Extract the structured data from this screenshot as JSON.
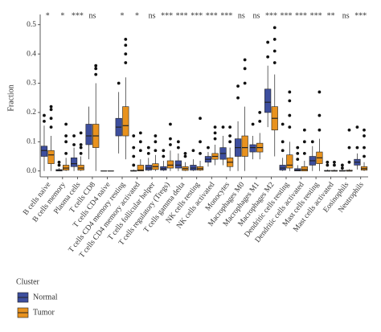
{
  "chart_data": {
    "type": "box",
    "y_label": "Fraction",
    "legend_title": "Cluster",
    "categories": [
      "B cells naive",
      "B cells memory",
      "Plasma cells",
      "T cells CD8",
      "T cells CD4 naive",
      "T cells CD4 memory resting",
      "T cells CD4 memory activated",
      "T cells follicular helper",
      "T cells regulatory (Tregs)",
      "T cells gamma delta",
      "NK cells resting",
      "NK cells activated",
      "Monocytes",
      "Macrophages M0",
      "Macrophages M1",
      "Macrophages M2",
      "Dendritic cells resting",
      "Dendritic cells activated",
      "Mast cells resting",
      "Mast cells activated",
      "Eosinophils",
      "Neutrophils"
    ],
    "annotations": [
      "*",
      "*",
      "***",
      "ns",
      null,
      "*",
      "*",
      "ns",
      "***",
      "***",
      "***",
      "***",
      "***",
      "ns",
      "ns",
      "***",
      "***",
      "***",
      "***",
      "**",
      "ns",
      "***"
    ],
    "ylim": [
      -0.02,
      0.535
    ],
    "yticks": [
      {
        "value": 0,
        "label": "0.0"
      },
      0.1,
      0.2,
      0.3,
      0.4,
      0.5
    ],
    "series": [
      {
        "name": "Normal",
        "color": "#3d4e9e",
        "whisker_low": [
          0,
          0,
          0,
          0.04,
          0,
          0.06,
          0,
          0,
          0,
          0,
          0,
          0.015,
          0.02,
          0,
          0.04,
          0.15,
          0,
          0,
          0,
          0,
          0,
          0.005
        ],
        "q1": [
          0.05,
          0,
          0.015,
          0.09,
          0,
          0.12,
          0,
          0.003,
          0.003,
          0.01,
          0.003,
          0.03,
          0.04,
          0.05,
          0.065,
          0.2,
          0.003,
          0,
          0.02,
          0,
          0,
          0.02
        ],
        "median": [
          0.07,
          0.002,
          0.025,
          0.12,
          0,
          0.15,
          0,
          0.01,
          0.008,
          0.02,
          0.01,
          0.04,
          0.06,
          0.08,
          0.08,
          0.235,
          0.01,
          0.003,
          0.035,
          0,
          0,
          0.03
        ],
        "q3": [
          0.085,
          0.005,
          0.045,
          0.16,
          0,
          0.18,
          0.002,
          0.02,
          0.015,
          0.035,
          0.02,
          0.05,
          0.08,
          0.11,
          0.09,
          0.28,
          0.02,
          0.008,
          0.05,
          0.002,
          0.002,
          0.04
        ],
        "whisker_high": [
          0.155,
          0.01,
          0.08,
          0.22,
          0,
          0.27,
          0.005,
          0.045,
          0.035,
          0.06,
          0.04,
          0.065,
          0.12,
          0.17,
          0.12,
          0.36,
          0.045,
          0.02,
          0.085,
          0.005,
          0.005,
          0.06
        ],
        "outliers": [
          [
            0.17,
            0.19
          ],
          [
            0.02,
            0.03
          ],
          [
            0.09,
            0.12
          ],
          [],
          [],
          [
            0.3
          ],
          [
            0.02,
            0.05,
            0.08,
            0.12
          ],
          [
            0.06,
            0.08
          ],
          [
            0.05,
            0.07
          ],
          [
            0.08,
            0.1
          ],
          [
            0.07
          ],
          [
            0.08
          ],
          [
            0.15
          ],
          [
            0.25,
            0.29
          ],
          [
            0.16
          ],
          [
            0.39,
            0.44
          ],
          [
            0.07,
            0.1,
            0.16
          ],
          [
            0.04,
            0.06,
            0.08
          ],
          [
            0.1
          ],
          [
            0.02,
            0.03
          ],
          [
            0.01,
            0.02
          ],
          [
            0.08,
            0.15
          ]
        ]
      },
      {
        "name": "Tumor",
        "color": "#e8921e",
        "whisker_low": [
          0,
          0,
          0,
          0,
          0,
          0.04,
          0,
          0,
          0,
          0,
          0,
          0.02,
          0,
          0,
          0.04,
          0.05,
          0,
          0,
          0,
          0,
          0,
          0
        ],
        "q1": [
          0.025,
          0.003,
          0.003,
          0.08,
          0,
          0.12,
          0,
          0.005,
          0.01,
          0.002,
          0.003,
          0.04,
          0.015,
          0.05,
          0.065,
          0.14,
          0.01,
          0,
          0.025,
          0,
          0,
          0.003
        ],
        "median": [
          0.055,
          0.01,
          0.01,
          0.12,
          0,
          0.155,
          0.003,
          0.015,
          0.02,
          0.008,
          0.008,
          0.05,
          0.03,
          0.08,
          0.08,
          0.18,
          0.02,
          0.005,
          0.045,
          0,
          0,
          0.008
        ],
        "q3": [
          0.07,
          0.02,
          0.02,
          0.16,
          0,
          0.22,
          0.02,
          0.025,
          0.035,
          0.015,
          0.015,
          0.06,
          0.045,
          0.12,
          0.095,
          0.22,
          0.055,
          0.015,
          0.065,
          0.002,
          0.003,
          0.015
        ],
        "whisker_high": [
          0.12,
          0.045,
          0.05,
          0.3,
          0,
          0.32,
          0.04,
          0.055,
          0.07,
          0.03,
          0.035,
          0.09,
          0.08,
          0.22,
          0.13,
          0.33,
          0.1,
          0.035,
          0.11,
          0.005,
          0.006,
          0.03
        ],
        "outliers": [
          [
            0.15,
            0.18,
            0.21,
            0.22
          ],
          [
            0.06,
            0.1,
            0.12,
            0.16
          ],
          [
            0.06,
            0.08,
            0.09,
            0.13
          ],
          [
            0.33,
            0.35,
            0.36
          ],
          [],
          [
            0.37,
            0.4,
            0.43,
            0.45
          ],
          [
            0.07,
            0.1,
            0.13
          ],
          [
            0.07,
            0.1,
            0.12
          ],
          [
            0.09,
            0.11,
            0.16
          ],
          [
            0.05,
            0.06
          ],
          [
            0.06,
            0.1,
            0.18
          ],
          [
            0.11,
            0.13,
            0.15
          ],
          [
            0.1,
            0.12,
            0.15
          ],
          [
            0.3,
            0.35,
            0.38
          ],
          [
            0.17,
            0.2
          ],
          [
            0.37,
            0.41,
            0.45,
            0.49
          ],
          [
            0.15,
            0.19,
            0.24,
            0.27
          ],
          [
            0.06,
            0.1,
            0.14
          ],
          [
            0.14,
            0.19,
            0.27
          ],
          [
            0.02,
            0.03
          ],
          [
            0.03,
            0.08,
            0.14
          ],
          [
            0.05,
            0.08,
            0.12,
            0.14
          ]
        ]
      }
    ]
  }
}
